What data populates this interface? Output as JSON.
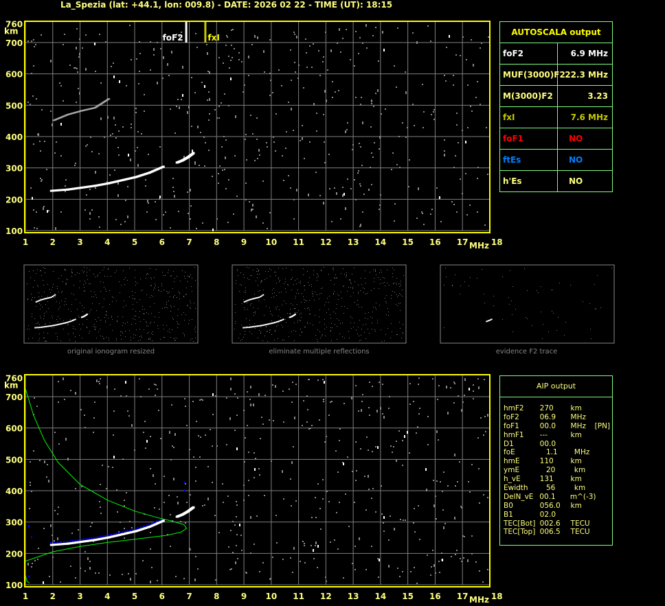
{
  "title": "La_Spezia (lat: +44.1, lon: 009.8) - DATE: 2026 02 22 - TIME (UT): 18:15",
  "colors": {
    "axis": "#ffff00",
    "grid": "#808080",
    "panel_border": "#80ff80",
    "trace": "#ffffff",
    "profile": "#00ff00",
    "aip_points": "#0000ff",
    "fof1": "#ff0000",
    "ftes": "#0080ff",
    "fxi": "#c8c800"
  },
  "plot_labels": {
    "y_unit": "km",
    "x_unit": "MHz",
    "fof2_marker": "foF2",
    "fxi_marker": "fxI"
  },
  "autoscala": {
    "title": "AUTOSCALA output",
    "rows": [
      {
        "key": "foF2",
        "value": "6.9 MHz",
        "color": "#ffffff"
      },
      {
        "key": "MUF(3000)F2",
        "value": "22.3 MHz",
        "color": "#ffff80"
      },
      {
        "key": "M(3000)F2",
        "value": "3.23",
        "color": "#ffff80"
      },
      {
        "key": "fxI",
        "value": "7.6 MHz",
        "color": "#c8c800"
      },
      {
        "key": "foF1",
        "value": "NO",
        "color": "#ff0000"
      },
      {
        "key": "ftEs",
        "value": "NO",
        "color": "#0080ff"
      },
      {
        "key": "h'Es",
        "value": "NO",
        "color": "#ffff80"
      }
    ]
  },
  "thumbnails": [
    {
      "caption": "original ionogram resized"
    },
    {
      "caption": "eliminate multiple reflections"
    },
    {
      "caption": "evidence F2 trace"
    }
  ],
  "aip": {
    "title": "AIP output",
    "rows": [
      {
        "name": "hmF2",
        "value": "270",
        "unit": "km",
        "note": ""
      },
      {
        "name": "foF2",
        "value": "06.9",
        "unit": "MHz",
        "note": ""
      },
      {
        "name": "foF1",
        "value": "00.0",
        "unit": "MHz",
        "note": "[PN]"
      },
      {
        "name": "hmF1",
        "value": "---",
        "unit": "km",
        "note": ""
      },
      {
        "name": "D1",
        "value": "00.0",
        "unit": "",
        "note": ""
      },
      {
        "name": "foE",
        "value": "1.1",
        "unit": "MHz",
        "note": ""
      },
      {
        "name": "hmE",
        "value": "110",
        "unit": "km",
        "note": ""
      },
      {
        "name": "ymE",
        "value": "20",
        "unit": "km",
        "note": ""
      },
      {
        "name": "h_vE",
        "value": "131",
        "unit": "km",
        "note": ""
      },
      {
        "name": "Ewidth",
        "value": "56",
        "unit": "km",
        "note": ""
      },
      {
        "name": "DelN_vE",
        "value": "00.1",
        "unit": "m^(-3)",
        "note": ""
      },
      {
        "name": "B0",
        "value": "056.0",
        "unit": "km",
        "note": ""
      },
      {
        "name": "B1",
        "value": "02.0",
        "unit": "",
        "note": ""
      },
      {
        "name": "TEC[Bot]",
        "value": "002.6",
        "unit": "TECU",
        "note": ""
      },
      {
        "name": "TEC[Top]",
        "value": "006.5",
        "unit": "TECU",
        "note": ""
      }
    ]
  },
  "chart_data": [
    {
      "type": "scatter",
      "xlabel": "MHz",
      "ylabel": "km",
      "xlim": [
        1,
        18
      ],
      "ylim": [
        100,
        760
      ],
      "xticks": [
        "1",
        "2",
        "3",
        "4",
        "5",
        "6",
        "7",
        "8",
        "9",
        "10",
        "11",
        "12",
        "13",
        "14",
        "15",
        "16",
        "17",
        "18"
      ],
      "yticks": [
        "760",
        "700",
        "600",
        "500",
        "400",
        "300",
        "200",
        "100"
      ],
      "grid": true,
      "markers": [
        {
          "label": "foF2",
          "x": 6.9
        },
        {
          "label": "fxI",
          "x": 7.6
        }
      ],
      "series": [
        {
          "x": [
            1.9,
            2.5,
            3.0,
            3.5,
            4.0,
            4.5,
            5.0,
            5.5,
            6.0
          ],
          "y": [
            228,
            232,
            238,
            244,
            252,
            262,
            272,
            286,
            305
          ]
        },
        {
          "x": [
            6.5,
            6.7,
            6.9,
            7.1
          ],
          "y": [
            318,
            325,
            335,
            348
          ]
        },
        {
          "x": [
            2.0,
            2.5,
            3.0,
            3.5,
            4.0
          ],
          "y": [
            452,
            470,
            482,
            492,
            520
          ]
        }
      ]
    },
    {
      "type": "scatter",
      "xlabel": "MHz",
      "ylabel": "km",
      "xlim": [
        1,
        18
      ],
      "ylim": [
        100,
        760
      ],
      "xticks": [
        "1",
        "2",
        "3",
        "4",
        "5",
        "6",
        "7",
        "8",
        "9",
        "10",
        "11",
        "12",
        "13",
        "14",
        "15",
        "16",
        "17",
        "18"
      ],
      "yticks": [
        "760",
        "700",
        "600",
        "500",
        "400",
        "300",
        "200",
        "100"
      ],
      "grid": true,
      "series": [
        {
          "x": [
            1.9,
            2.5,
            3.0,
            3.5,
            4.0,
            4.5,
            5.0,
            5.5,
            6.0
          ],
          "y": [
            228,
            232,
            238,
            244,
            252,
            262,
            272,
            286,
            305
          ]
        },
        {
          "x": [
            6.5,
            6.7,
            6.9,
            7.1
          ],
          "y": [
            318,
            325,
            335,
            348
          ]
        },
        {
          "type": "line",
          "x": [
            1.0,
            1.3,
            1.7,
            2.2,
            3.0,
            4.0,
            5.0,
            5.8,
            6.4,
            6.8,
            6.9,
            6.7,
            6.2,
            5.0,
            4.0,
            3.0,
            2.0,
            1.0
          ],
          "y": [
            725,
            640,
            560,
            490,
            420,
            370,
            335,
            315,
            302,
            292,
            280,
            268,
            258,
            245,
            235,
            222,
            205,
            175
          ]
        }
      ]
    }
  ]
}
